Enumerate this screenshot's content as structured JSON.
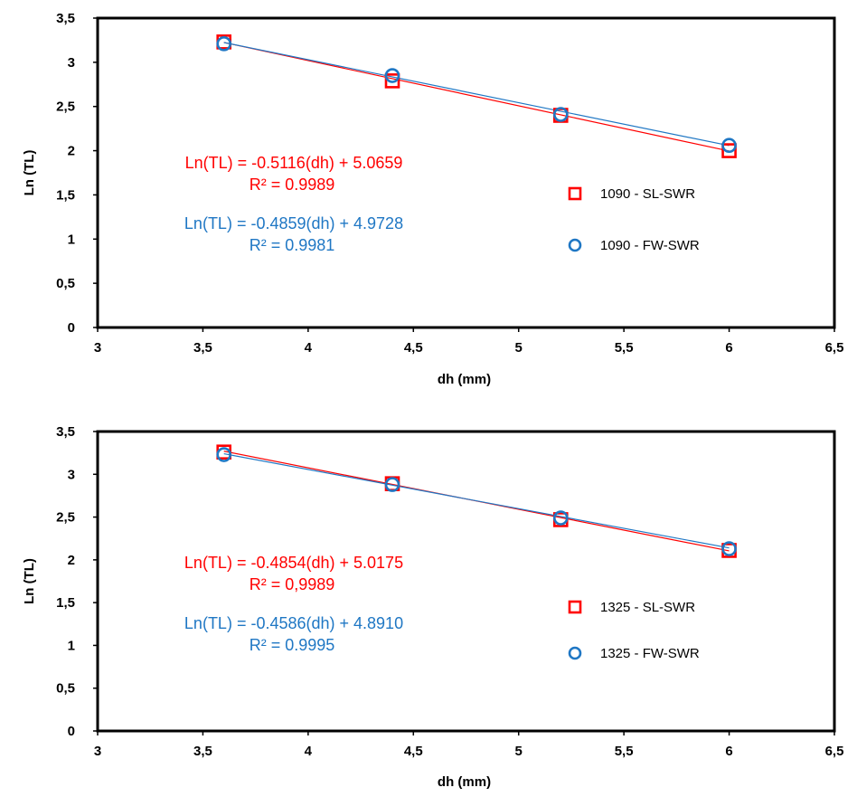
{
  "colors": {
    "series_a": "#ff0000",
    "series_b": "#1f77c4",
    "axis": "#000000"
  },
  "chart_data": [
    {
      "type": "scatter",
      "title": "",
      "xlabel": "dh (mm)",
      "ylabel": "Ln (TL)",
      "xlim": [
        3,
        6.5
      ],
      "ylim": [
        0,
        3.5
      ],
      "xticks": [
        "3",
        "3,5",
        "4",
        "4,5",
        "5",
        "5,5",
        "6",
        "6,5"
      ],
      "yticks": [
        "0",
        "0,5",
        "1",
        "1,5",
        "2",
        "2,5",
        "3",
        "3,5"
      ],
      "grid": false,
      "legend": "right",
      "series": [
        {
          "name": "1090 - SL-SWR",
          "marker": "square",
          "x": [
            3.6,
            4.4,
            5.2,
            6.0
          ],
          "y": [
            3.23,
            2.79,
            2.4,
            2.0
          ],
          "trendline": {
            "slope": -0.5116,
            "intercept": 5.0659
          }
        },
        {
          "name": "1090 - FW-SWR",
          "marker": "circle",
          "x": [
            3.6,
            4.4,
            5.2,
            6.0
          ],
          "y": [
            3.21,
            2.85,
            2.41,
            2.06
          ],
          "trendline": {
            "slope": -0.4859,
            "intercept": 4.9728
          }
        }
      ],
      "annotations": [
        {
          "eq": "Ln(TL) = -0.5116(dh) + 5.0659",
          "r2": "R² = 0.9989"
        },
        {
          "eq": "Ln(TL) = -0.4859(dh) + 4.9728",
          "r2": "R² = 0.9981"
        }
      ]
    },
    {
      "type": "scatter",
      "title": "",
      "xlabel": "dh (mm)",
      "ylabel": "Ln (TL)",
      "xlim": [
        3,
        6.5
      ],
      "ylim": [
        0,
        3.5
      ],
      "xticks": [
        "3",
        "3,5",
        "4",
        "4,5",
        "5",
        "5,5",
        "6",
        "6,5"
      ],
      "yticks": [
        "0",
        "0,5",
        "1",
        "1,5",
        "2",
        "2,5",
        "3",
        "3,5"
      ],
      "grid": false,
      "legend": "right",
      "series": [
        {
          "name": "1325 - SL-SWR",
          "marker": "square",
          "x": [
            3.6,
            4.4,
            5.2,
            6.0
          ],
          "y": [
            3.26,
            2.89,
            2.47,
            2.11
          ],
          "trendline": {
            "slope": -0.4854,
            "intercept": 5.0175
          }
        },
        {
          "name": "1325 - FW-SWR",
          "marker": "circle",
          "x": [
            3.6,
            4.4,
            5.2,
            6.0
          ],
          "y": [
            3.23,
            2.88,
            2.49,
            2.13
          ],
          "trendline": {
            "slope": -0.4586,
            "intercept": 4.891
          }
        }
      ],
      "annotations": [
        {
          "eq": "Ln(TL) = -0.4854(dh) + 5.0175",
          "r2": "R² = 0,9989"
        },
        {
          "eq": "Ln(TL) = -0.4586(dh) + 4.8910",
          "r2": "R² = 0.9995"
        }
      ]
    }
  ]
}
